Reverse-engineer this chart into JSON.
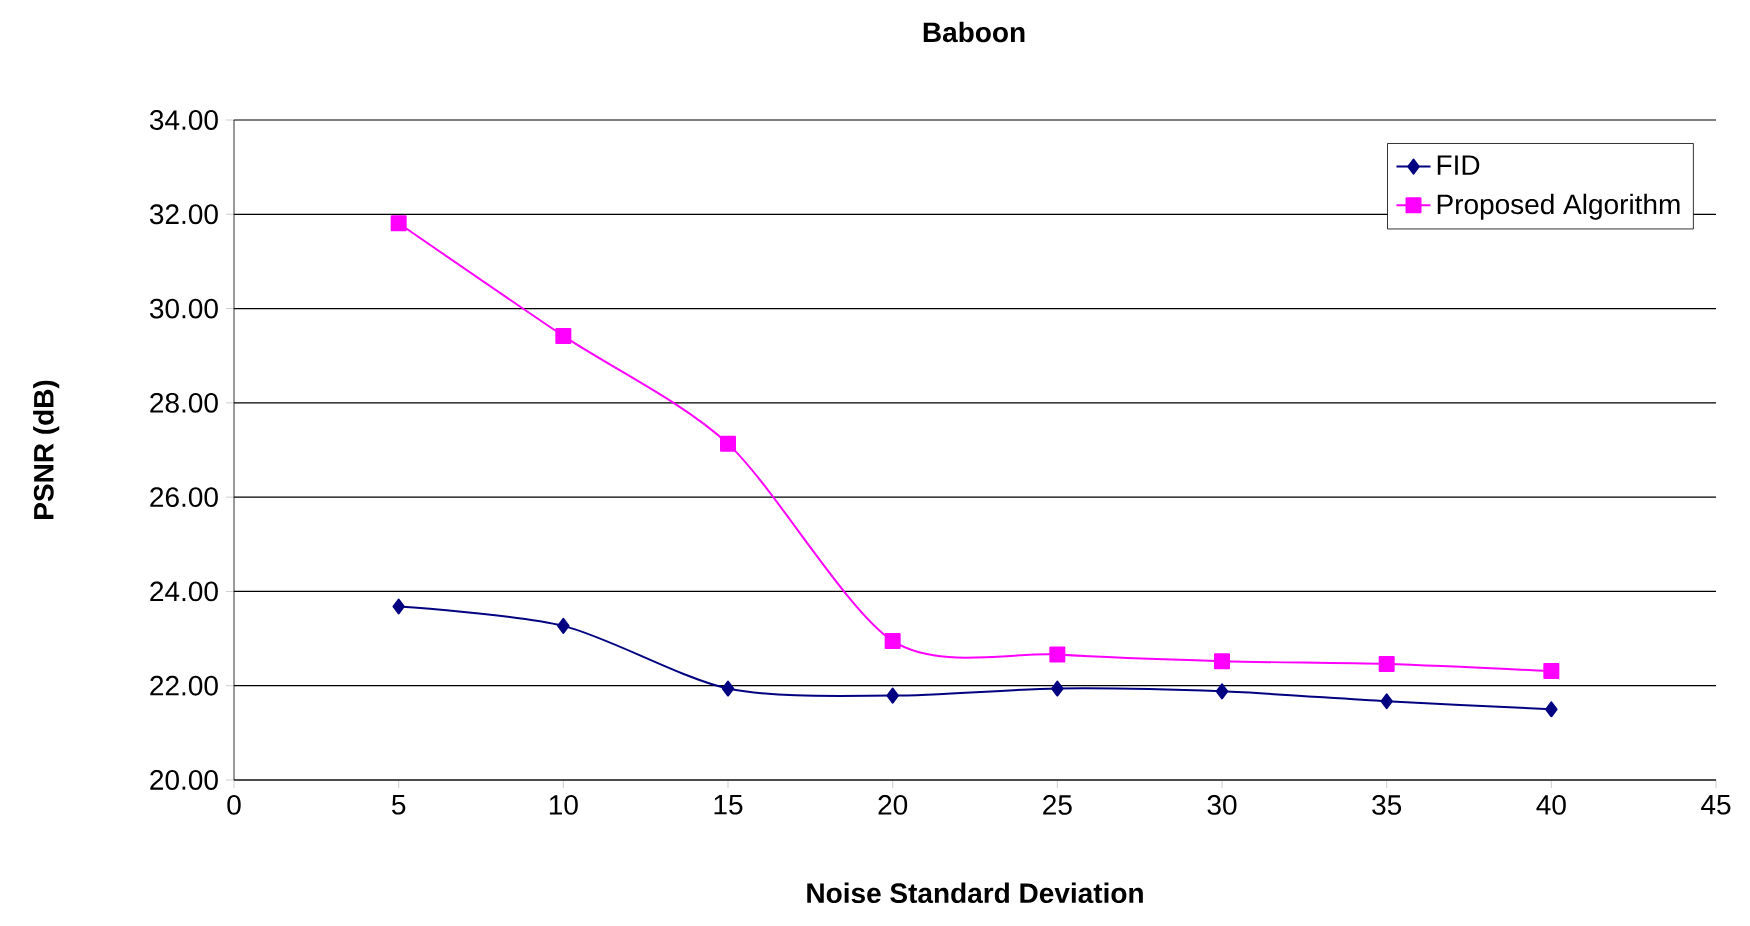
{
  "chart_data": {
    "type": "line",
    "title": "Baboon",
    "xlabel": "Noise Standard Deviation",
    "ylabel": "PSNR (dB)",
    "x": [
      5,
      10,
      15,
      20,
      25,
      30,
      35,
      40
    ],
    "series": [
      {
        "name": "FID",
        "color": "#000080",
        "marker": "diamond",
        "values": [
          23.68,
          23.27,
          21.94,
          21.79,
          21.94,
          21.88,
          21.67,
          21.5
        ]
      },
      {
        "name": "Proposed Algorithm",
        "color": "#ff00ff",
        "marker": "square",
        "values": [
          31.81,
          29.42,
          27.13,
          22.95,
          22.66,
          22.52,
          22.46,
          22.31
        ]
      }
    ],
    "xlim": [
      0,
      45
    ],
    "xticks": [
      0,
      5,
      10,
      15,
      20,
      25,
      30,
      35,
      40,
      45
    ],
    "ylim": [
      20,
      34
    ],
    "yticks": [
      {
        "value": 20,
        "label": "20.00"
      },
      {
        "value": 22,
        "label": "22.00"
      },
      {
        "value": 24,
        "label": "24.00"
      },
      {
        "value": 26,
        "label": "26.00"
      },
      {
        "value": 28,
        "label": "28.00"
      },
      {
        "value": 30,
        "label": "30.00"
      },
      {
        "value": 32,
        "label": "32.00"
      },
      {
        "value": 34,
        "label": "34.00"
      }
    ],
    "grid": "y",
    "legend": "top right",
    "line_style": "solid"
  }
}
